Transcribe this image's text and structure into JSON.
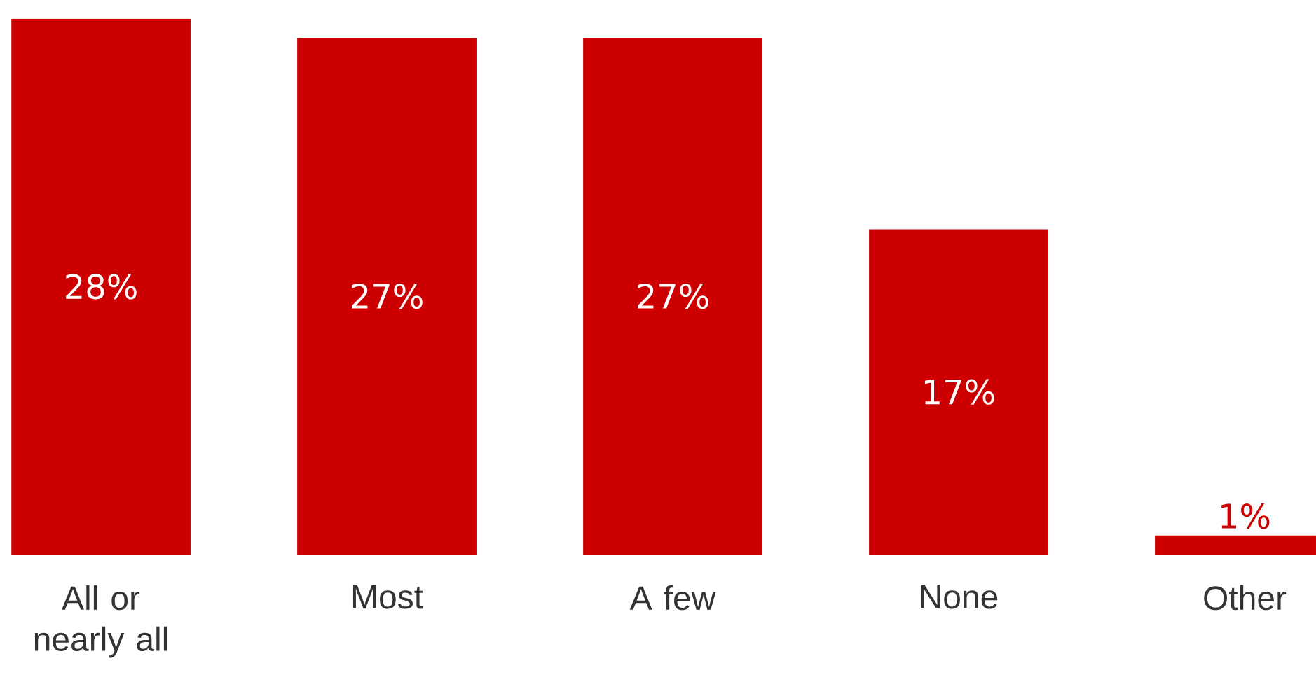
{
  "chart_data": {
    "type": "bar",
    "categories": [
      "All or nearly all",
      "Most",
      "A few",
      "None",
      "Other"
    ],
    "values": [
      28,
      27,
      27,
      17,
      1
    ],
    "value_labels": [
      "28%",
      "27%",
      "27%",
      "17%",
      "1%"
    ],
    "color": "#cc0000",
    "tick_labels": "x"
  }
}
